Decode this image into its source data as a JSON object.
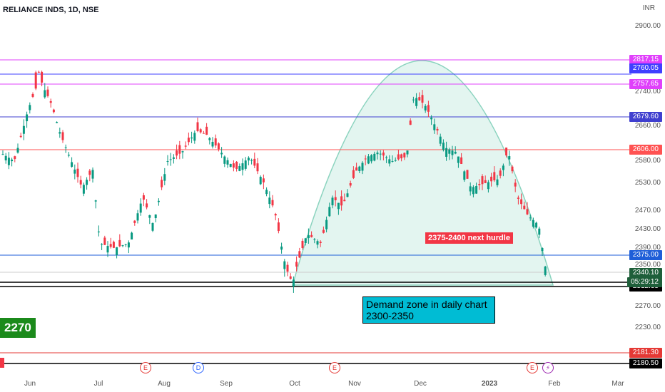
{
  "header": {
    "symbol": "RELIANCE INDS, 1D, NSE",
    "currency": "INR"
  },
  "chart_data": {
    "type": "candlestick",
    "title": "RELIANCE INDS, 1D, NSE",
    "x_ticks": [
      "Jun",
      "Jul",
      "Aug",
      "Sep",
      "Oct",
      "Nov",
      "Dec",
      "2023",
      "Feb",
      "Mar"
    ],
    "y_ticks": [
      2900.0,
      2740.0,
      2660.0,
      2580.0,
      2530.0,
      2470.0,
      2430.0,
      2390.0,
      2350.0,
      2270.0,
      2230.0
    ],
    "horizontal_levels": [
      {
        "value": "2817.15",
        "color": "#e040fb"
      },
      {
        "value": "2760.05",
        "color": "#3f3fff"
      },
      {
        "value": "2757.65",
        "color": "#e040fb"
      },
      {
        "value": "2679.60",
        "color": "#3f3fcf"
      },
      {
        "value": "2606.00",
        "color": "#ff5252"
      },
      {
        "value": "2375.00",
        "color": "#1e5ed8"
      },
      {
        "value": "2322.40",
        "color": "#000000"
      },
      {
        "value": "2312.35",
        "color": "#000000"
      },
      {
        "value": "2181.30",
        "color": "#e53935"
      },
      {
        "value": "2180.50",
        "color": "#000000"
      }
    ],
    "last_price": "2340.10",
    "countdown": "05:29:12",
    "annotations": [
      {
        "text": "2375-2400 next hurdle"
      },
      {
        "text": "Demand zone in daily chart\n2300-2350"
      },
      {
        "text": "2270"
      }
    ],
    "events": [
      {
        "label": "E"
      },
      {
        "label": "D"
      },
      {
        "label": "E"
      },
      {
        "label": "E"
      }
    ],
    "colors": {
      "up": "#089981",
      "down": "#f23645",
      "arc": "#7ecfb8"
    }
  }
}
